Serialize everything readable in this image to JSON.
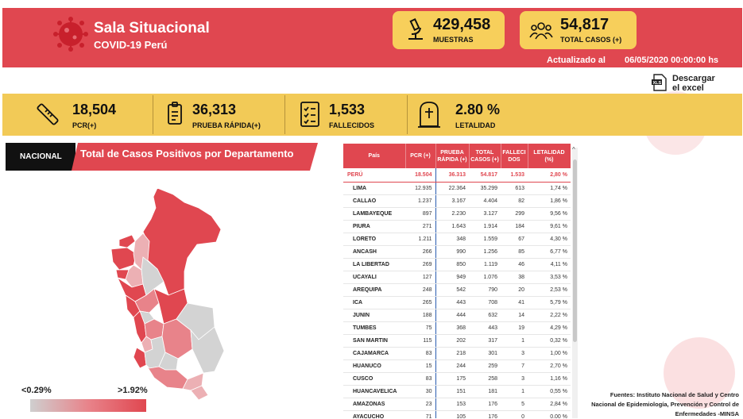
{
  "header": {
    "title": "Sala Situacional",
    "subtitle": "COVID-19 Perú",
    "muestras_value": "429,458",
    "muestras_label": "MUESTRAS",
    "total_value": "54,817",
    "total_label": "TOTAL CASOS (+)",
    "updated_label": "Actualizado al",
    "updated_value": "06/05/2020 00:00:00 hs"
  },
  "download": {
    "line1": "Descargar",
    "line2": "el excel"
  },
  "stats": [
    {
      "value": "18,504",
      "label": "PCR(+)",
      "icon": "thermometer-icon"
    },
    {
      "value": "36,313",
      "label": "PRUEBA RÁPIDA(+)",
      "icon": "rapid-test-icon"
    },
    {
      "value": "1,533",
      "label": "FALLECIDOS",
      "icon": "checklist-icon"
    },
    {
      "value": "2.80 %",
      "label": "LETALIDAD",
      "icon": "tombstone-icon"
    }
  ],
  "map": {
    "tab_label": "NACIONAL",
    "title": "Total de Casos Positivos por Departamento",
    "legend_min": "<0.29%",
    "legend_max": ">1.92%",
    "colors": {
      "high": "#e04750",
      "mid": "#e8838a",
      "low": "#ecb0b4",
      "none": "#d3d3d3"
    }
  },
  "table": {
    "headers": [
      "País",
      "PCR (+)",
      "PRUEBA RÁPIDA (+)",
      "TOTAL CASOS (+)",
      "FALLECI DOS",
      "LETALIDAD (%)"
    ],
    "total": [
      "PERÚ",
      "18.504",
      "36.313",
      "54.817",
      "1.533",
      "2,80 %"
    ],
    "rows": [
      [
        "LIMA",
        "12.935",
        "22.364",
        "35.299",
        "613",
        "1,74 %"
      ],
      [
        "CALLAO",
        "1.237",
        "3.167",
        "4.404",
        "82",
        "1,86 %"
      ],
      [
        "LAMBAYEQUE",
        "897",
        "2.230",
        "3.127",
        "299",
        "9,56 %"
      ],
      [
        "PIURA",
        "271",
        "1.643",
        "1.914",
        "184",
        "9,61 %"
      ],
      [
        "LORETO",
        "1.211",
        "348",
        "1.559",
        "67",
        "4,30 %"
      ],
      [
        "ANCASH",
        "266",
        "990",
        "1.256",
        "85",
        "6,77 %"
      ],
      [
        "LA LIBERTAD",
        "269",
        "850",
        "1.119",
        "46",
        "4,11 %"
      ],
      [
        "UCAYALI",
        "127",
        "949",
        "1.076",
        "38",
        "3,53 %"
      ],
      [
        "AREQUIPA",
        "248",
        "542",
        "790",
        "20",
        "2,53 %"
      ],
      [
        "ICA",
        "265",
        "443",
        "708",
        "41",
        "5,79 %"
      ],
      [
        "JUNIN",
        "188",
        "444",
        "632",
        "14",
        "2,22 %"
      ],
      [
        "TUMBES",
        "75",
        "368",
        "443",
        "19",
        "4,29 %"
      ],
      [
        "SAN MARTIN",
        "115",
        "202",
        "317",
        "1",
        "0,32 %"
      ],
      [
        "CAJAMARCA",
        "83",
        "218",
        "301",
        "3",
        "1,00 %"
      ],
      [
        "HUANUCO",
        "15",
        "244",
        "259",
        "7",
        "2,70 %"
      ],
      [
        "CUSCO",
        "83",
        "175",
        "258",
        "3",
        "1,16 %"
      ],
      [
        "HUANCAVELICA",
        "30",
        "151",
        "181",
        "1",
        "0,55 %"
      ],
      [
        "AMAZONAS",
        "23",
        "153",
        "176",
        "5",
        "2,84 %"
      ],
      [
        "AYACUCHO",
        "71",
        "105",
        "176",
        "0",
        "0,00 %"
      ]
    ]
  },
  "source": {
    "line1": "Fuentes: Instituto Nacional de Salud y Centro",
    "line2": "Nacional de Epidemiología, Prevención y Control de",
    "line3": "Enfermedades -MINSA"
  },
  "colors": {
    "brand_red": "#e04750",
    "brand_yellow": "#f2ca57"
  }
}
